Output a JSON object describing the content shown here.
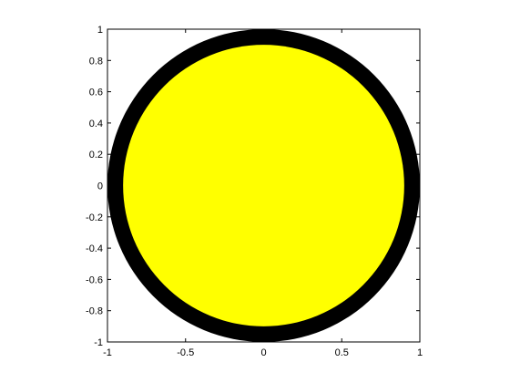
{
  "chart_data": {
    "type": "shape",
    "title": "",
    "xlabel": "",
    "ylabel": "",
    "xlim": [
      -1,
      1
    ],
    "ylim": [
      -1,
      1
    ],
    "grid": false,
    "x_ticks": [
      -1,
      -0.5,
      0,
      0.5,
      1
    ],
    "x_tick_labels": [
      "-1",
      "-0.5",
      "0",
      "0.5",
      "1"
    ],
    "y_ticks": [
      -1,
      -0.8,
      -0.6,
      -0.4,
      -0.2,
      0,
      0.2,
      0.4,
      0.6,
      0.8,
      1
    ],
    "y_tick_labels": [
      "-1",
      "-0.8",
      "-0.6",
      "-0.4",
      "-0.2",
      "0",
      "0.2",
      "0.4",
      "0.6",
      "0.8",
      "1"
    ],
    "shapes": [
      {
        "name": "outer-ring",
        "kind": "circle",
        "center": [
          0,
          0
        ],
        "radius": 1,
        "fill": "#000000"
      },
      {
        "name": "inner-disk",
        "kind": "circle",
        "center": [
          0,
          0
        ],
        "radius": 0.9,
        "fill": "#ffff00"
      }
    ]
  }
}
